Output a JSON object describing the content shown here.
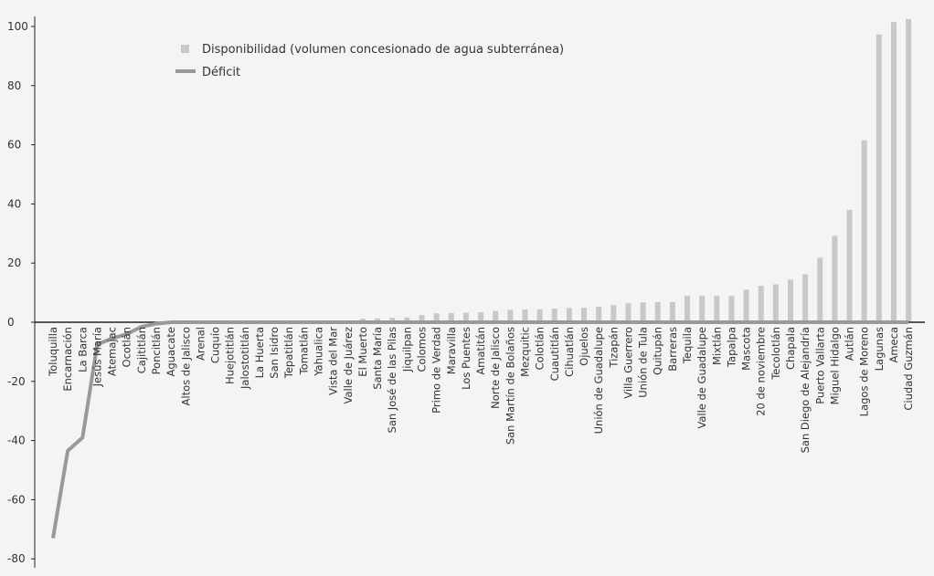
{
  "chart_data": {
    "type": "bar",
    "title": "",
    "xlabel": "",
    "ylabel": "",
    "ylim": [
      -85,
      105
    ],
    "yticks": [
      100,
      80,
      60,
      40,
      20,
      0,
      -20,
      -40,
      -60,
      -80
    ],
    "legend_position": "top-left",
    "categories": [
      "Toluquilla",
      "Encarnación",
      "La Barca",
      "Jesús María",
      "Atemajac",
      "Ocotlán",
      "Cajititlán",
      "Poncitlán",
      "Aguacate",
      "Altos de Jalisco",
      "Arenal",
      "Cuquío",
      "Huejotitlán",
      "Jalostotitlán",
      "La Huerta",
      "San Isidro",
      "Tepatitlán",
      "Tomatlán",
      "Yahualica",
      "Vista del Mar",
      "Valle de Juárez",
      "El Muerto",
      "Santa María",
      "San José de las Pilas",
      "Jiquilpan",
      "Colomos",
      "Primo de Verdad",
      "Maravilla",
      "Los Puentes",
      "Amatitán",
      "Norte de Jalisco",
      "San Martín de Bolaños",
      "Mezquitic",
      "Colotlán",
      "Cuautitlán",
      "Cihuatlán",
      "Ojuelos",
      "Unión de Guadalupe",
      "Tizapán",
      "Villa Guerrero",
      "Unión de Tula",
      "Quitupán",
      "Barreras",
      "Tequila",
      "Valle de Guadalupe",
      "Mixtlán",
      "Tapalpa",
      "Mascota",
      "20 de noviembre",
      "Tecolotlán",
      "Chapala",
      "San Diego de Alejandría",
      "Puerto Vallarta",
      "Miguel Hidalgo",
      "Autlán",
      "Lagos de Moreno",
      "Lagunas",
      "Ameca",
      "Ciudad Guzmán"
    ],
    "series": [
      {
        "name": "Disponibilidad (volumen concesionado de agua subterránea)",
        "type": "bar",
        "color": "#c8c8c8",
        "values": [
          0,
          0,
          0,
          0,
          0,
          0,
          0,
          0,
          0,
          0,
          0,
          0,
          0,
          0,
          0,
          0,
          0,
          0,
          0,
          0.5,
          0.6,
          1.2,
          1.3,
          1.5,
          1.6,
          2.4,
          3.0,
          3.1,
          3.2,
          3.4,
          3.8,
          4.2,
          4.3,
          4.4,
          4.6,
          4.8,
          4.9,
          5.2,
          5.8,
          6.4,
          6.7,
          6.8,
          6.8,
          8.9,
          8.9,
          8.9,
          8.9,
          11.0,
          12.3,
          12.8,
          14.4,
          16.2,
          21.8,
          29.2,
          38.0,
          61.5,
          97.3,
          101.5,
          102.5
        ]
      },
      {
        "name": "Déficit",
        "type": "line",
        "color": "#999999",
        "values": [
          -73,
          -43.5,
          -39,
          -7.5,
          -5.5,
          -4,
          -1.5,
          -0.5,
          0,
          0,
          0,
          0,
          0,
          0,
          0,
          0,
          0,
          0,
          0,
          0,
          0,
          0,
          0,
          0,
          0,
          0,
          0,
          0,
          0,
          0,
          0,
          0,
          0,
          0,
          0,
          0,
          0,
          0,
          0,
          0,
          0,
          0,
          0,
          0,
          0,
          0,
          0,
          0,
          0,
          0,
          0,
          0,
          0,
          0,
          0,
          0,
          0,
          0,
          0
        ]
      }
    ]
  }
}
